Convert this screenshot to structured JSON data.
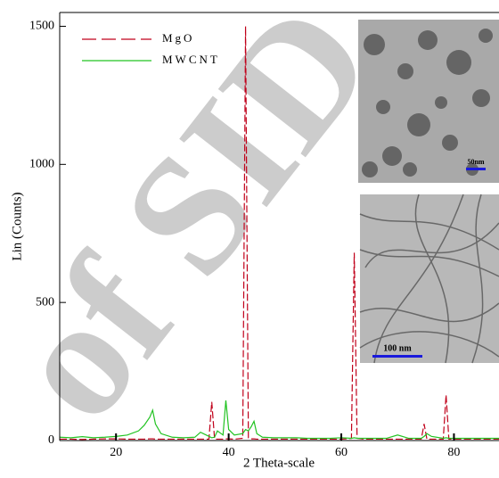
{
  "chart_data": {
    "type": "line",
    "watermark": "of SID",
    "xlabel": "2 Theta-scale",
    "ylabel": "Lin (Counts)",
    "x": [
      10,
      12,
      14,
      16,
      18,
      20,
      22,
      24,
      25,
      26,
      26.5,
      27,
      28,
      30,
      32,
      34,
      35,
      36.5,
      37,
      37.5,
      38,
      39,
      39.5,
      40,
      41,
      42.5,
      43,
      43.5,
      44,
      44.5,
      45,
      46,
      48,
      50,
      52,
      54,
      56,
      58,
      60,
      61.8,
      62.3,
      62.8,
      64,
      66,
      68,
      70,
      72,
      74.2,
      74.7,
      75.2,
      76,
      78.1,
      78.6,
      79.1,
      80,
      82,
      84,
      86,
      88
    ],
    "series": [
      {
        "name": "MgO",
        "color": "#c0001a",
        "dash": true,
        "values": [
          5,
          5,
          4,
          5,
          6,
          6,
          5,
          5,
          5,
          6,
          6,
          5,
          5,
          5,
          5,
          5,
          5,
          5,
          140,
          5,
          5,
          5,
          6,
          6,
          5,
          8,
          1500,
          10,
          6,
          6,
          5,
          5,
          5,
          5,
          5,
          5,
          5,
          5,
          5,
          8,
          680,
          8,
          5,
          5,
          5,
          5,
          5,
          5,
          60,
          5,
          5,
          5,
          165,
          5,
          5,
          5,
          5,
          5,
          5
        ]
      },
      {
        "name": "MWCNT",
        "color": "#22c322",
        "dash": false,
        "values": [
          12,
          10,
          14,
          10,
          12,
          15,
          20,
          35,
          55,
          85,
          110,
          60,
          25,
          12,
          10,
          12,
          30,
          15,
          10,
          12,
          35,
          20,
          145,
          40,
          20,
          25,
          40,
          35,
          50,
          70,
          25,
          12,
          10,
          10,
          10,
          8,
          8,
          8,
          10,
          8,
          10,
          8,
          8,
          8,
          8,
          20,
          8,
          8,
          15,
          25,
          15,
          8,
          10,
          8,
          8,
          8,
          8,
          8,
          8
        ]
      }
    ],
    "xlim": [
      10,
      88
    ],
    "ylim": [
      0,
      1550
    ],
    "xticks": [
      20,
      40,
      60,
      80
    ],
    "yticks": [
      0,
      500,
      1000,
      1500
    ],
    "legend": "top-left",
    "insets": [
      {
        "label": "50nm"
      },
      {
        "label": "100 nm"
      }
    ]
  }
}
